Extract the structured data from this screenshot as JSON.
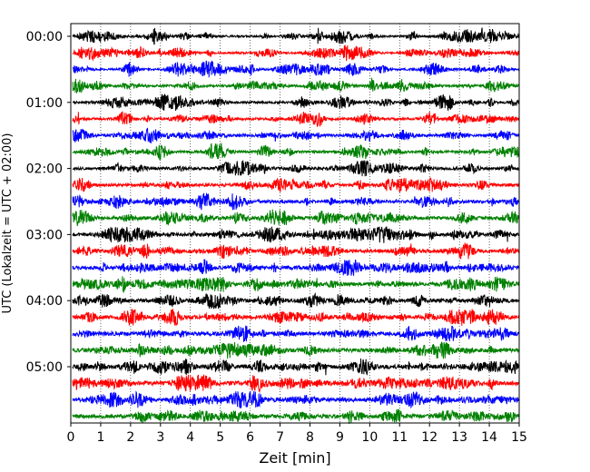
{
  "chart_data": {
    "type": "line",
    "title": "",
    "xlabel": "Zeit  [min]",
    "ylabel": "UTC (Lokalzeit = UTC + 02:00)",
    "xlim": [
      0,
      15
    ],
    "x_ticks": [
      "0",
      "1",
      "2",
      "3",
      "4",
      "5",
      "6",
      "7",
      "8",
      "9",
      "10",
      "11",
      "12",
      "13",
      "14",
      "15"
    ],
    "grid": "vertical dotted",
    "trace_interval_min": 15,
    "trace_count": 24,
    "trace_colors": [
      "#000000",
      "#ff0000",
      "#0000ff",
      "#008000"
    ],
    "y_ticks": [
      {
        "label": "00:00",
        "trace_index": 0
      },
      {
        "label": "01:00",
        "trace_index": 4
      },
      {
        "label": "02:00",
        "trace_index": 8
      },
      {
        "label": "03:00",
        "trace_index": 12
      },
      {
        "label": "04:00",
        "trace_index": 16
      },
      {
        "label": "05:00",
        "trace_index": 20
      }
    ],
    "notable_events": [
      {
        "trace_index": 0,
        "x_min": 8.25
      },
      {
        "trace_index": 0,
        "x_min": 13.75
      },
      {
        "trace_index": 2,
        "x_min": 4.65
      },
      {
        "trace_index": 5,
        "x_min": 0.2
      },
      {
        "trace_index": 6,
        "x_min": 6.8
      },
      {
        "trace_index": 8,
        "x_min": 6.45
      },
      {
        "trace_index": 8,
        "x_min": 14.75
      },
      {
        "trace_index": 10,
        "x_min": 11.5
      },
      {
        "trace_index": 12,
        "x_min": 8.1
      },
      {
        "trace_index": 12,
        "x_min": 14.6
      },
      {
        "trace_index": 15,
        "x_min": 8.2
      },
      {
        "trace_index": 17,
        "x_min": 7.0
      },
      {
        "trace_index": 20,
        "x_min": 8.5
      },
      {
        "trace_index": 20,
        "x_min": 11.3
      },
      {
        "trace_index": 21,
        "x_min": 9.65
      },
      {
        "trace_index": 23,
        "x_min": 5.0
      }
    ]
  }
}
